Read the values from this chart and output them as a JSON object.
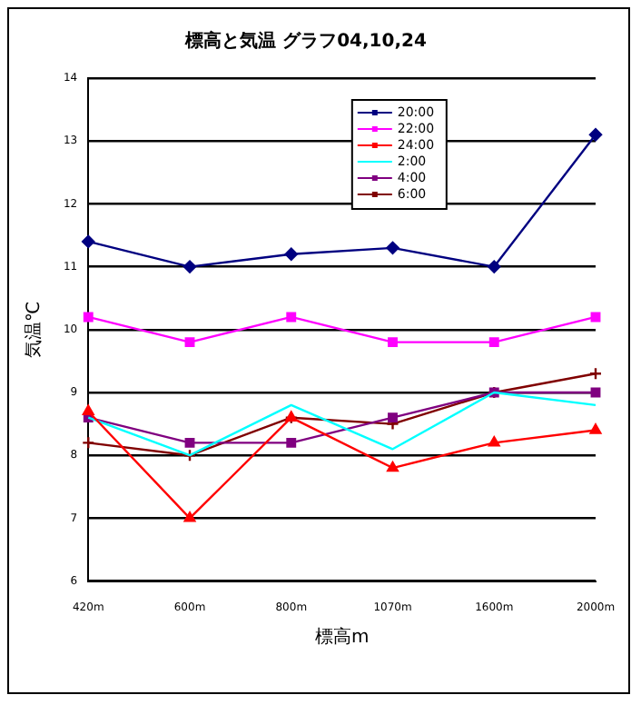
{
  "chart_data": {
    "type": "line",
    "title": "標高と気温 グラフ04,10,24",
    "xlabel": "標高m",
    "ylabel": "気温℃",
    "categories": [
      "420m",
      "600m",
      "800m",
      "1070m",
      "1600m",
      "2000m"
    ],
    "ylim": [
      6,
      14
    ],
    "yticks": [
      6,
      7,
      8,
      9,
      10,
      11,
      12,
      13,
      14
    ],
    "grid": "y",
    "legend": "top right",
    "line_style": "solid",
    "series": [
      {
        "name": "20:00",
        "color": "#000080",
        "marker": "diamond",
        "values": [
          11.4,
          11.0,
          11.2,
          11.3,
          11.0,
          13.1
        ]
      },
      {
        "name": "22:00",
        "color": "#ff00ff",
        "marker": "square",
        "values": [
          10.2,
          9.8,
          10.2,
          9.8,
          9.8,
          10.2
        ]
      },
      {
        "name": "24:00",
        "color": "#ff0000",
        "marker": "triangle",
        "values": [
          8.7,
          7.0,
          8.6,
          7.8,
          8.2,
          8.4
        ]
      },
      {
        "name": "2:00",
        "color": "#00ffff",
        "marker": "none",
        "values": [
          8.6,
          8.0,
          8.8,
          8.1,
          9.0,
          8.8
        ]
      },
      {
        "name": "4:00",
        "color": "#800080",
        "marker": "square",
        "values": [
          8.6,
          8.2,
          8.2,
          8.6,
          9.0,
          9.0
        ]
      },
      {
        "name": "6:00",
        "color": "#800000",
        "marker": "cross",
        "values": [
          8.2,
          8.0,
          8.6,
          8.5,
          9.0,
          9.3
        ]
      }
    ]
  }
}
